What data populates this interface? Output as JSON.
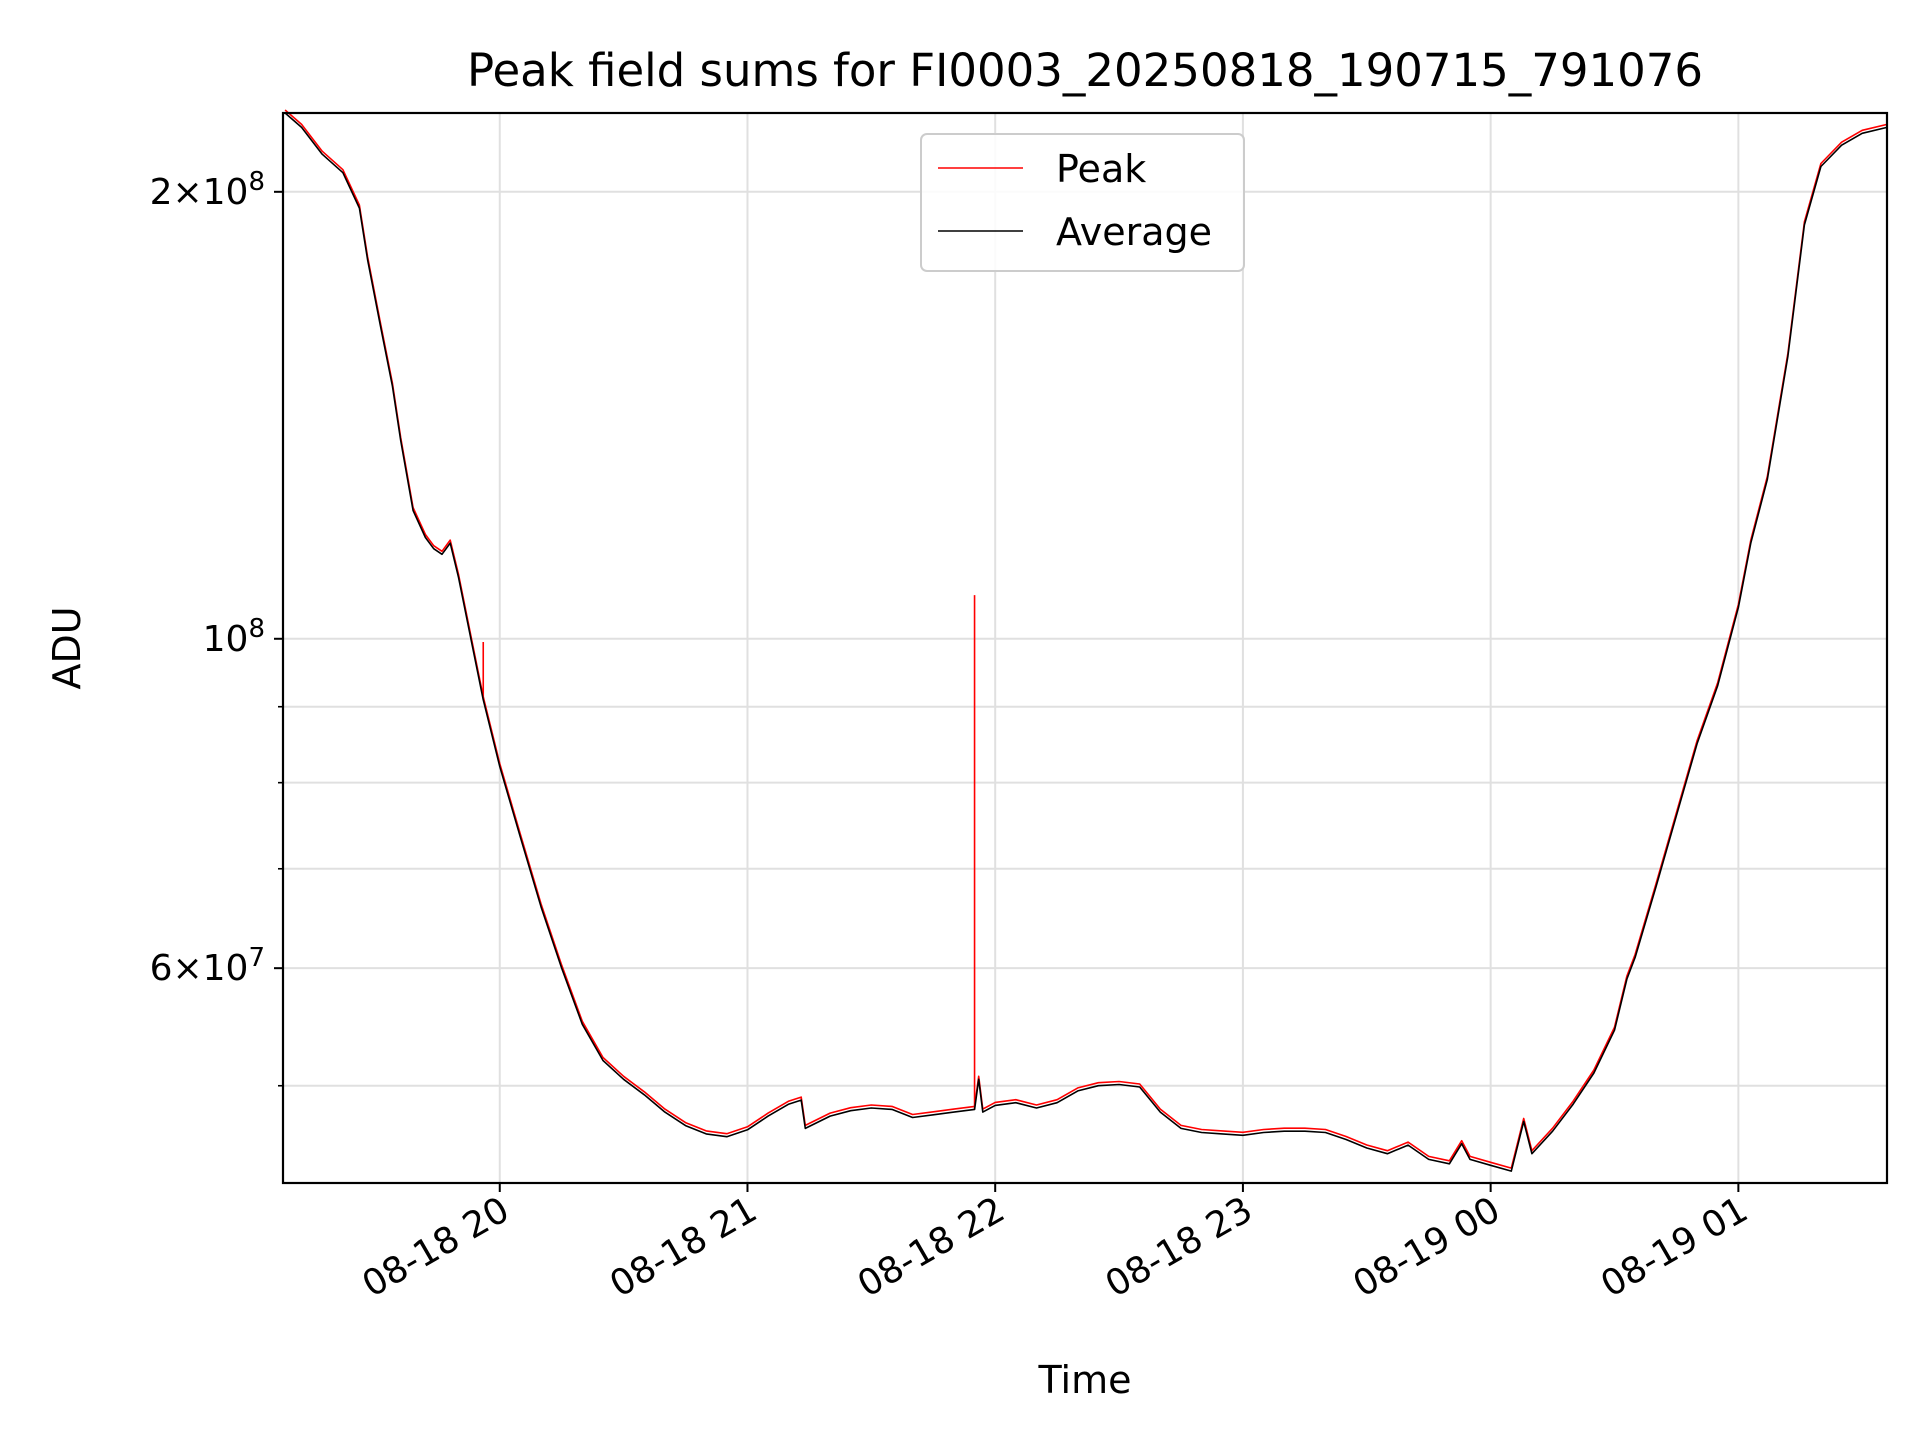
{
  "chart_data": {
    "type": "line",
    "title": "Peak field sums for FI0003_20250818_190715_791076",
    "xlabel": "Time",
    "ylabel": "ADU",
    "y_scale": "log",
    "ylim": [
      43000000,
      226000000
    ],
    "xlim": [
      "2025-08-18 19:07:30",
      "2025-08-19 01:36:00"
    ],
    "grid": true,
    "legend_position": "top-center",
    "x_ticks": [
      {
        "t": "2025-08-18 20:00",
        "label": "08-18 20"
      },
      {
        "t": "2025-08-18 21:00",
        "label": "08-18 21"
      },
      {
        "t": "2025-08-18 22:00",
        "label": "08-18 22"
      },
      {
        "t": "2025-08-18 23:00",
        "label": "08-18 23"
      },
      {
        "t": "2025-08-19 00:00",
        "label": "08-19 00"
      },
      {
        "t": "2025-08-19 01:00",
        "label": "08-19 01"
      }
    ],
    "y_ticks_major": [
      {
        "value": 200000000,
        "base": "2×10",
        "exp": "8"
      },
      {
        "value": 100000000,
        "base": "10",
        "exp": "8"
      },
      {
        "value": 60000000,
        "base": "6×10",
        "exp": "7"
      }
    ],
    "y_ticks_minor": [
      50000000,
      70000000,
      80000000,
      90000000
    ],
    "series": [
      {
        "name": "Average",
        "color": "#000000",
        "points": [
          [
            "2025-08-18 19:08",
            226000000
          ],
          [
            "2025-08-18 19:12",
            221000000
          ],
          [
            "2025-08-18 19:17",
            212000000
          ],
          [
            "2025-08-18 19:22",
            206000000
          ],
          [
            "2025-08-18 19:26",
            195000000
          ],
          [
            "2025-08-18 19:28",
            180000000
          ],
          [
            "2025-08-18 19:31",
            163000000
          ],
          [
            "2025-08-18 19:34",
            148000000
          ],
          [
            "2025-08-18 19:36",
            136000000
          ],
          [
            "2025-08-18 19:39",
            122000000
          ],
          [
            "2025-08-18 19:42",
            117000000
          ],
          [
            "2025-08-18 19:44",
            115000000
          ],
          [
            "2025-08-18 19:46",
            114000000
          ],
          [
            "2025-08-18 19:48",
            116000000
          ],
          [
            "2025-08-18 19:50",
            110000000
          ],
          [
            "2025-08-18 19:53",
            100000000
          ],
          [
            "2025-08-18 19:56",
            91000000
          ],
          [
            "2025-08-18 20:00",
            82000000
          ],
          [
            "2025-08-18 20:05",
            73500000
          ],
          [
            "2025-08-18 20:10",
            66000000
          ],
          [
            "2025-08-18 20:15",
            60000000
          ],
          [
            "2025-08-18 20:20",
            55000000
          ],
          [
            "2025-08-18 20:25",
            52000000
          ],
          [
            "2025-08-18 20:30",
            50500000
          ],
          [
            "2025-08-18 20:35",
            49300000
          ],
          [
            "2025-08-18 20:40",
            48000000
          ],
          [
            "2025-08-18 20:45",
            47000000
          ],
          [
            "2025-08-18 20:50",
            46400000
          ],
          [
            "2025-08-18 20:55",
            46200000
          ],
          [
            "2025-08-18 21:00",
            46700000
          ],
          [
            "2025-08-18 21:05",
            47700000
          ],
          [
            "2025-08-18 21:10",
            48600000
          ],
          [
            "2025-08-18 21:13",
            48900000
          ],
          [
            "2025-08-18 21:14",
            46800000
          ],
          [
            "2025-08-18 21:20",
            47700000
          ],
          [
            "2025-08-18 21:25",
            48100000
          ],
          [
            "2025-08-18 21:30",
            48300000
          ],
          [
            "2025-08-18 21:35",
            48200000
          ],
          [
            "2025-08-18 21:40",
            47600000
          ],
          [
            "2025-08-18 21:45",
            47800000
          ],
          [
            "2025-08-18 21:50",
            48000000
          ],
          [
            "2025-08-18 21:55",
            48200000
          ],
          [
            "2025-08-18 21:56",
            50500000
          ],
          [
            "2025-08-18 21:57",
            48000000
          ],
          [
            "2025-08-18 22:00",
            48500000
          ],
          [
            "2025-08-18 22:05",
            48700000
          ],
          [
            "2025-08-18 22:10",
            48300000
          ],
          [
            "2025-08-18 22:15",
            48700000
          ],
          [
            "2025-08-18 22:20",
            49600000
          ],
          [
            "2025-08-18 22:25",
            50000000
          ],
          [
            "2025-08-18 22:30",
            50100000
          ],
          [
            "2025-08-18 22:35",
            49900000
          ],
          [
            "2025-08-18 22:40",
            48000000
          ],
          [
            "2025-08-18 22:45",
            46800000
          ],
          [
            "2025-08-18 22:50",
            46500000
          ],
          [
            "2025-08-18 22:55",
            46400000
          ],
          [
            "2025-08-18 23:00",
            46300000
          ],
          [
            "2025-08-18 23:05",
            46500000
          ],
          [
            "2025-08-18 23:10",
            46600000
          ],
          [
            "2025-08-18 23:15",
            46600000
          ],
          [
            "2025-08-18 23:20",
            46500000
          ],
          [
            "2025-08-18 23:25",
            46000000
          ],
          [
            "2025-08-18 23:30",
            45400000
          ],
          [
            "2025-08-18 23:35",
            45000000
          ],
          [
            "2025-08-18 23:40",
            45600000
          ],
          [
            "2025-08-18 23:45",
            44600000
          ],
          [
            "2025-08-18 23:50",
            44300000
          ],
          [
            "2025-08-18 23:53",
            45700000
          ],
          [
            "2025-08-18 23:55",
            44600000
          ],
          [
            "2025-08-19 00:00",
            44200000
          ],
          [
            "2025-08-19 00:05",
            43800000
          ],
          [
            "2025-08-19 00:08",
            47300000
          ],
          [
            "2025-08-19 00:10",
            45000000
          ],
          [
            "2025-08-19 00:15",
            46600000
          ],
          [
            "2025-08-19 00:20",
            48600000
          ],
          [
            "2025-08-19 00:25",
            51000000
          ],
          [
            "2025-08-19 00:30",
            54500000
          ],
          [
            "2025-08-19 00:33",
            59000000
          ],
          [
            "2025-08-19 00:35",
            61000000
          ],
          [
            "2025-08-19 00:40",
            68000000
          ],
          [
            "2025-08-19 00:45",
            76000000
          ],
          [
            "2025-08-19 00:50",
            85000000
          ],
          [
            "2025-08-19 00:55",
            93000000
          ],
          [
            "2025-08-19 01:00",
            105000000
          ],
          [
            "2025-08-19 01:03",
            116000000
          ],
          [
            "2025-08-19 01:07",
            128000000
          ],
          [
            "2025-08-19 01:12",
            155000000
          ],
          [
            "2025-08-19 01:16",
            190000000
          ],
          [
            "2025-08-19 01:20",
            208000000
          ],
          [
            "2025-08-19 01:25",
            215000000
          ],
          [
            "2025-08-19 01:30",
            219000000
          ],
          [
            "2025-08-19 01:36",
            221000000
          ]
        ]
      },
      {
        "name": "Peak",
        "color": "#ff0000",
        "spikes": [
          [
            "2025-08-18 19:56",
            99500000
          ],
          [
            "2025-08-18 21:55",
            107000000
          ]
        ]
      }
    ]
  }
}
